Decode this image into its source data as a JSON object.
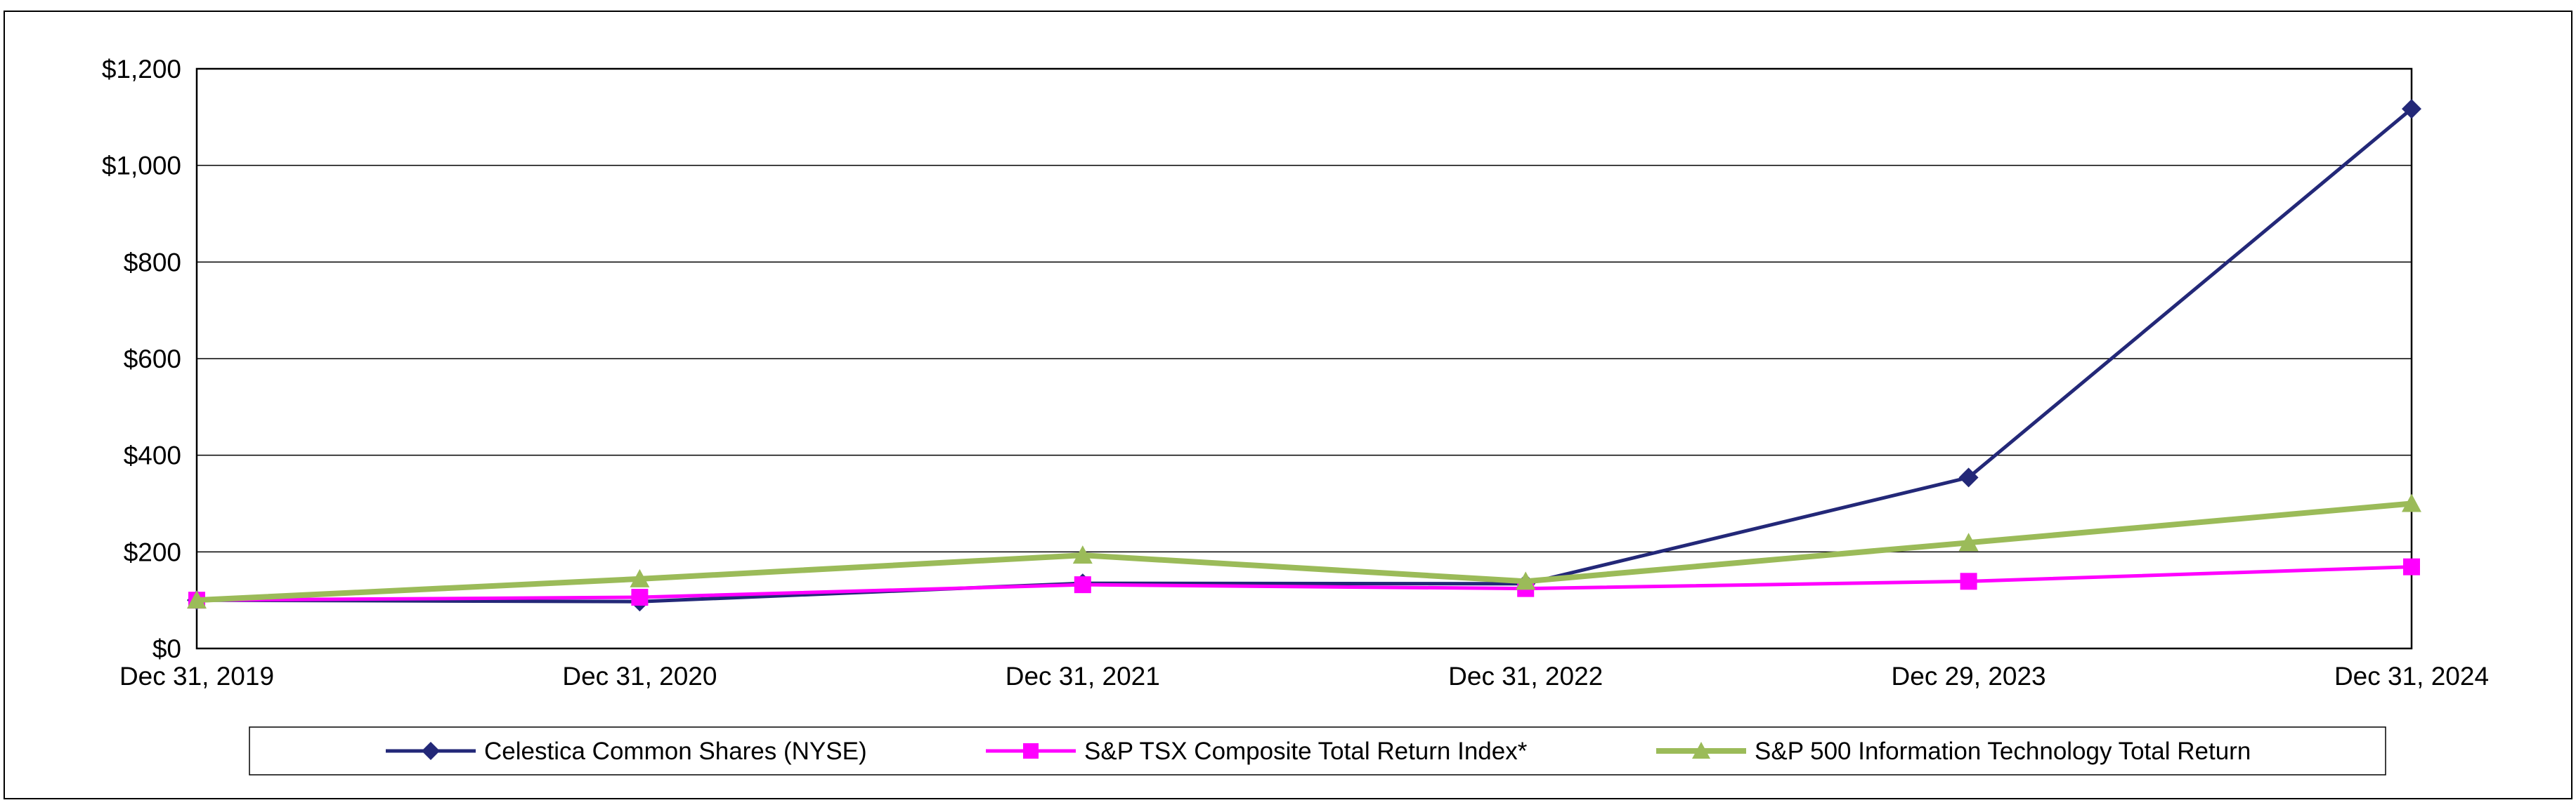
{
  "chart_data": {
    "type": "line",
    "title": "",
    "xlabel": "",
    "ylabel": "",
    "categories": [
      "Dec 31, 2019",
      "Dec 31, 2020",
      "Dec 31, 2021",
      "Dec 31, 2022",
      "Dec 29, 2023",
      "Dec 31, 2024"
    ],
    "series": [
      {
        "name": "Celestica Common Shares (NYSE)",
        "color": "#232878",
        "marker": "diamond",
        "line_width": 5,
        "values": [
          100,
          97,
          135,
          134,
          354,
          1117
        ]
      },
      {
        "name": "S&P TSX Composite Total Return Index*",
        "color": "#FF00FF",
        "marker": "square",
        "line_width": 5,
        "values": [
          100,
          106,
          132,
          124,
          139,
          169
        ]
      },
      {
        "name": "S&P 500 Information Technology Total Return",
        "color": "#9BBB59",
        "marker": "triangle",
        "line_width": 8,
        "values": [
          100,
          144,
          193,
          139,
          219,
          300
        ]
      }
    ],
    "ylim": [
      0,
      1200
    ],
    "ytick_step": 200,
    "ytick_labels": [
      "$0",
      "$200",
      "$400",
      "$600",
      "$800",
      "$1,000",
      "$1,200"
    ],
    "grid": "horizontal",
    "legend_position": "bottom",
    "axis_color": "#000000",
    "background_color": "#ffffff"
  }
}
